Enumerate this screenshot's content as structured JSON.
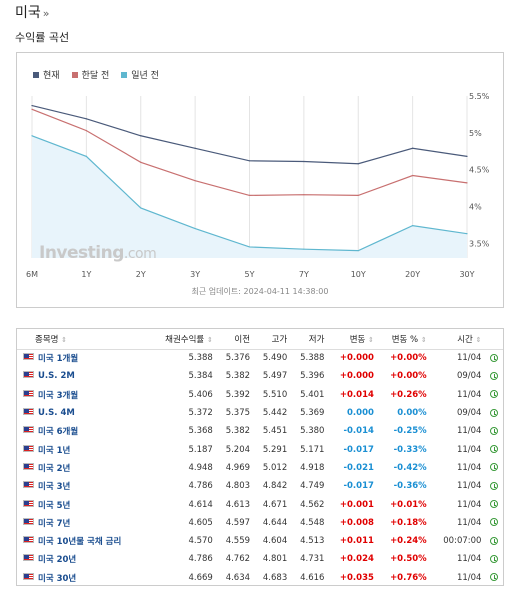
{
  "header": {
    "title": "미국",
    "raquo": "»",
    "section_title": "수익률 곡선"
  },
  "legend": [
    {
      "label": "현재",
      "color": "#4a5a7a"
    },
    {
      "label": "한달 전",
      "color": "#c87070"
    },
    {
      "label": "일년 전",
      "color": "#5fb7cf"
    }
  ],
  "watermark": {
    "main": "Investing",
    "suffix": ".com"
  },
  "updated_text": "최근 업데이트: 2024-04-11 14:38:00",
  "chart_data": {
    "type": "line",
    "categories": [
      "6M",
      "1Y",
      "2Y",
      "3Y",
      "5Y",
      "7Y",
      "10Y",
      "20Y",
      "30Y"
    ],
    "y_ticks": [
      "5.5%",
      "5%",
      "4.5%",
      "4%",
      "3.5%"
    ],
    "ylim": [
      3.3,
      5.5
    ],
    "series": [
      {
        "name": "현재",
        "color": "#4a5a7a",
        "values": [
          5.37,
          5.19,
          4.96,
          4.79,
          4.62,
          4.61,
          4.58,
          4.79,
          4.68
        ]
      },
      {
        "name": "한달 전",
        "color": "#c87070",
        "values": [
          5.32,
          5.03,
          4.6,
          4.35,
          4.15,
          4.16,
          4.15,
          4.42,
          4.32
        ]
      },
      {
        "name": "일년 전",
        "color": "#5fb7cf",
        "values": [
          4.96,
          4.68,
          3.98,
          3.7,
          3.45,
          3.42,
          3.4,
          3.74,
          3.63
        ]
      }
    ],
    "grid": "vertical",
    "legend_position": "top-left"
  },
  "table": {
    "headers": [
      "종목명",
      "채권수익률",
      "이전",
      "고가",
      "저가",
      "변동",
      "변동 %",
      "시간"
    ],
    "rows": [
      {
        "name": "미국 1개월",
        "yield": "5.388",
        "prev": "5.376",
        "high": "5.490",
        "low": "5.388",
        "chg": "+0.000",
        "chg_pct": "+0.00%",
        "time": "11/04",
        "chg_class": "zero",
        "pct_class": "zero"
      },
      {
        "name": "U.S. 2M",
        "yield": "5.384",
        "prev": "5.382",
        "high": "5.497",
        "low": "5.396",
        "chg": "+0.000",
        "chg_pct": "+0.00%",
        "time": "09/04",
        "chg_class": "zero",
        "pct_class": "zero"
      },
      {
        "name": "미국 3개월",
        "yield": "5.406",
        "prev": "5.392",
        "high": "5.510",
        "low": "5.401",
        "chg": "+0.014",
        "chg_pct": "+0.26%",
        "time": "11/04",
        "chg_class": "pos",
        "pct_class": "pos"
      },
      {
        "name": "U.S. 4M",
        "yield": "5.372",
        "prev": "5.375",
        "high": "5.442",
        "low": "5.369",
        "chg": "0.000",
        "chg_pct": "0.00%",
        "time": "09/04",
        "chg_class": "zero-blue",
        "pct_class": "zero-blue"
      },
      {
        "name": "미국 6개월",
        "yield": "5.368",
        "prev": "5.382",
        "high": "5.451",
        "low": "5.380",
        "chg": "-0.014",
        "chg_pct": "-0.25%",
        "time": "11/04",
        "chg_class": "neg",
        "pct_class": "neg"
      },
      {
        "name": "미국 1년",
        "yield": "5.187",
        "prev": "5.204",
        "high": "5.291",
        "low": "5.171",
        "chg": "-0.017",
        "chg_pct": "-0.33%",
        "time": "11/04",
        "chg_class": "neg",
        "pct_class": "neg"
      },
      {
        "name": "미국 2년",
        "yield": "4.948",
        "prev": "4.969",
        "high": "5.012",
        "low": "4.918",
        "chg": "-0.021",
        "chg_pct": "-0.42%",
        "time": "11/04",
        "chg_class": "neg",
        "pct_class": "neg"
      },
      {
        "name": "미국 3년",
        "yield": "4.786",
        "prev": "4.803",
        "high": "4.842",
        "low": "4.749",
        "chg": "-0.017",
        "chg_pct": "-0.36%",
        "time": "11/04",
        "chg_class": "neg",
        "pct_class": "neg"
      },
      {
        "name": "미국 5년",
        "yield": "4.614",
        "prev": "4.613",
        "high": "4.671",
        "low": "4.562",
        "chg": "+0.001",
        "chg_pct": "+0.01%",
        "time": "11/04",
        "chg_class": "pos",
        "pct_class": "pos"
      },
      {
        "name": "미국 7년",
        "yield": "4.605",
        "prev": "4.597",
        "high": "4.644",
        "low": "4.548",
        "chg": "+0.008",
        "chg_pct": "+0.18%",
        "time": "11/04",
        "chg_class": "pos",
        "pct_class": "pos"
      },
      {
        "name": "미국 10년물 국채 금리",
        "yield": "4.570",
        "prev": "4.559",
        "high": "4.604",
        "low": "4.513",
        "chg": "+0.011",
        "chg_pct": "+0.24%",
        "time": "00:07:00",
        "chg_class": "pos",
        "pct_class": "pos"
      },
      {
        "name": "미국 20년",
        "yield": "4.786",
        "prev": "4.762",
        "high": "4.801",
        "low": "4.731",
        "chg": "+0.024",
        "chg_pct": "+0.50%",
        "time": "11/04",
        "chg_class": "pos",
        "pct_class": "pos"
      },
      {
        "name": "미국 30년",
        "yield": "4.669",
        "prev": "4.634",
        "high": "4.683",
        "low": "4.616",
        "chg": "+0.035",
        "chg_pct": "+0.76%",
        "time": "11/04",
        "chg_class": "pos",
        "pct_class": "pos"
      }
    ]
  }
}
